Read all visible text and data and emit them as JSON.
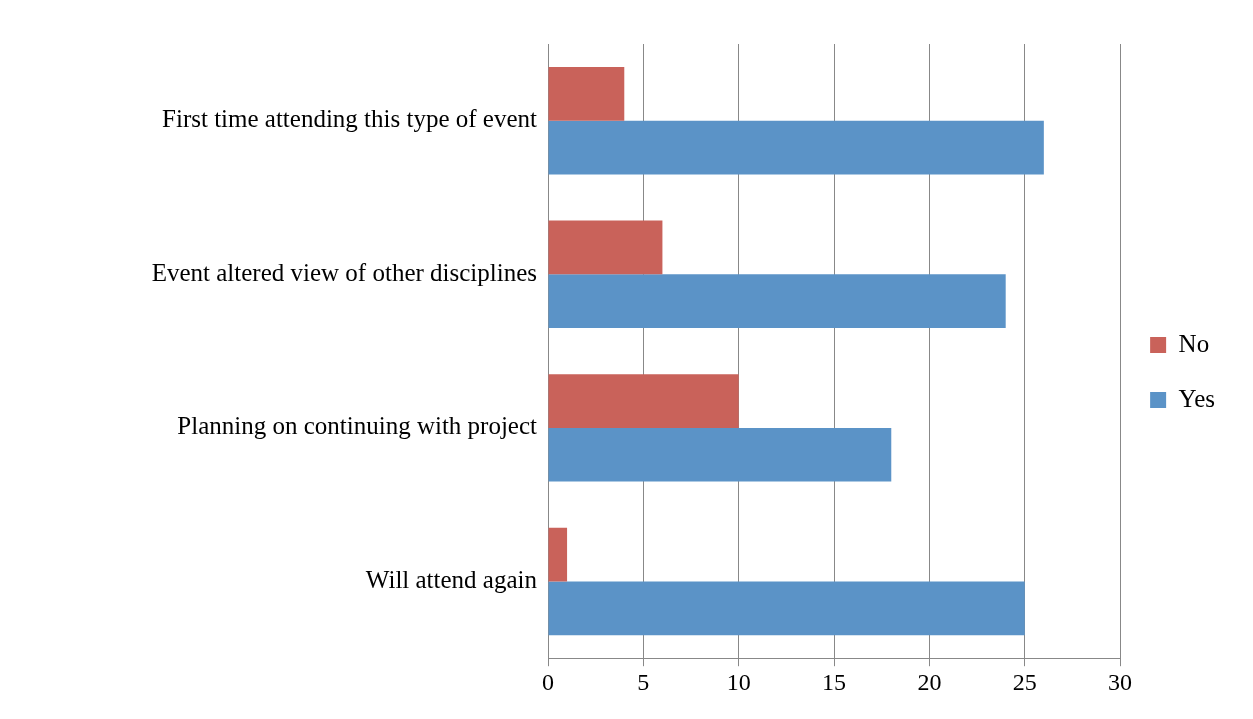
{
  "chart_data": {
    "type": "bar",
    "orientation": "horizontal",
    "categories": [
      "First time attending this type of event",
      "Event altered view of other disciplines",
      "Planning on continuing with project",
      "Will attend again"
    ],
    "series": [
      {
        "name": "No",
        "color": "#c9625a",
        "values": [
          4,
          6,
          10,
          1
        ]
      },
      {
        "name": "Yes",
        "color": "#5b93c7",
        "values": [
          26,
          24,
          18,
          25
        ]
      }
    ],
    "xlim": [
      0,
      30
    ],
    "xticks": [
      0,
      5,
      10,
      15,
      20,
      25,
      30
    ],
    "grid": "x",
    "legend": "right"
  }
}
